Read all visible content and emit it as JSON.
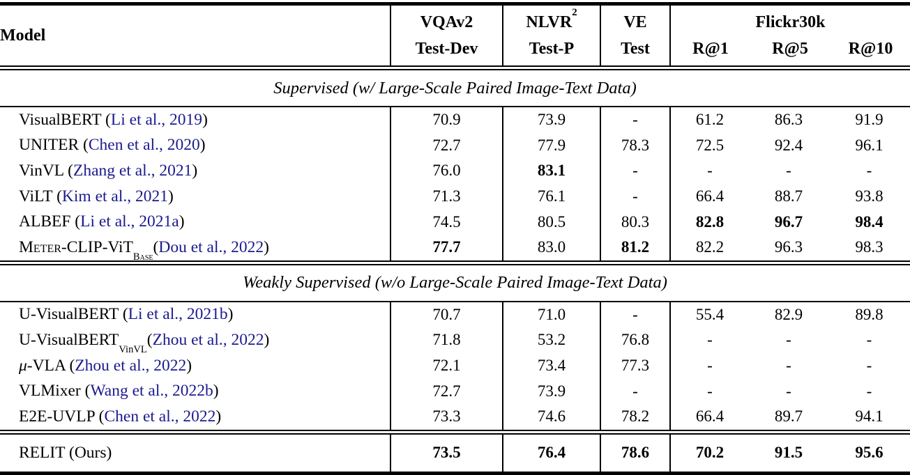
{
  "colors": {
    "citation": "#1A1A8F",
    "text": "#000000",
    "background": "#FFFFFF"
  },
  "header": {
    "model_label": "Model",
    "col_vqa": {
      "line1": "VQAv2",
      "line2": "Test-Dev"
    },
    "col_nlvr": {
      "line1_segments": [
        {
          "t": "NLVR"
        },
        {
          "t": "2",
          "sup": true
        }
      ],
      "line2": "Test-P"
    },
    "col_ve": {
      "line1": "VE",
      "line2": "Test"
    },
    "col_flickr": {
      "title": "Flickr30k",
      "sub": [
        "R@1",
        "R@5",
        "R@10"
      ]
    }
  },
  "sections": [
    {
      "title": "Supervised (w/ Large-Scale Paired Image-Text Data)",
      "rows": [
        {
          "model": [
            {
              "t": "VisualBERT ("
            },
            {
              "t": "Li et al., 2019",
              "cite": true
            },
            {
              "t": ")"
            }
          ],
          "values": [
            "70.9",
            "73.9",
            "-",
            "61.2",
            "86.3",
            "91.9"
          ]
        },
        {
          "model": [
            {
              "t": "UNITER ("
            },
            {
              "t": "Chen et al., 2020",
              "cite": true
            },
            {
              "t": ")"
            }
          ],
          "values": [
            "72.7",
            "77.9",
            "78.3",
            "72.5",
            "92.4",
            "96.1"
          ]
        },
        {
          "model": [
            {
              "t": "VinVL ("
            },
            {
              "t": "Zhang et al., 2021",
              "cite": true
            },
            {
              "t": ")"
            }
          ],
          "values": [
            "76.0",
            "83.1",
            "-",
            "-",
            "-",
            "-"
          ],
          "bold": [
            false,
            true,
            false,
            false,
            false,
            false
          ]
        },
        {
          "model": [
            {
              "t": "ViLT ("
            },
            {
              "t": "Kim et al., 2021",
              "cite": true
            },
            {
              "t": ")"
            }
          ],
          "values": [
            "71.3",
            "76.1",
            "-",
            "66.4",
            "88.7",
            "93.8"
          ]
        },
        {
          "model": [
            {
              "t": "ALBEF ("
            },
            {
              "t": "Li et al., 2021a",
              "cite": true
            },
            {
              "t": ")"
            }
          ],
          "values": [
            "74.5",
            "80.5",
            "80.3",
            "82.8",
            "96.7",
            "98.4"
          ],
          "bold": [
            false,
            false,
            false,
            true,
            true,
            true
          ]
        },
        {
          "model": [
            {
              "t": "Meter",
              "sc": true
            },
            {
              "t": "-CLIP-ViT"
            },
            {
              "t": "Base",
              "sub": true,
              "sc": true
            },
            {
              "t": " ("
            },
            {
              "t": "Dou et al., 2022",
              "cite": true
            },
            {
              "t": ")"
            }
          ],
          "values": [
            "77.7",
            "83.0",
            "81.2",
            "82.2",
            "96.3",
            "98.3"
          ],
          "bold": [
            true,
            false,
            true,
            false,
            false,
            false
          ]
        }
      ]
    },
    {
      "title": "Weakly Supervised (w/o Large-Scale Paired Image-Text Data)",
      "rows": [
        {
          "model": [
            {
              "t": "U-VisualBERT ("
            },
            {
              "t": "Li et al., 2021b",
              "cite": true
            },
            {
              "t": ")"
            }
          ],
          "values": [
            "70.7",
            "71.0",
            "-",
            "55.4",
            "82.9",
            "89.8"
          ]
        },
        {
          "model": [
            {
              "t": "U-VisualBERT"
            },
            {
              "t": "VinVL",
              "sub": true
            },
            {
              "t": " ("
            },
            {
              "t": "Zhou et al., 2022",
              "cite": true
            },
            {
              "t": ")"
            }
          ],
          "values": [
            "71.8",
            "53.2",
            "76.8",
            "-",
            "-",
            "-"
          ]
        },
        {
          "model": [
            {
              "t": "μ",
              "it": true
            },
            {
              "t": "-VLA ("
            },
            {
              "t": "Zhou et al., 2022",
              "cite": true
            },
            {
              "t": ")"
            }
          ],
          "values": [
            "72.1",
            "73.4",
            "77.3",
            "-",
            "-",
            "-"
          ]
        },
        {
          "model": [
            {
              "t": "VLMixer ("
            },
            {
              "t": "Wang et al., 2022b",
              "cite": true
            },
            {
              "t": ")"
            }
          ],
          "values": [
            "72.7",
            "73.9",
            "-",
            "-",
            "-",
            "-"
          ]
        },
        {
          "model": [
            {
              "t": "E2E-UVLP ("
            },
            {
              "t": "Chen et al., 2022",
              "cite": true
            },
            {
              "t": ")"
            }
          ],
          "values": [
            "73.3",
            "74.6",
            "78.2",
            "66.4",
            "89.7",
            "94.1"
          ]
        }
      ]
    }
  ],
  "final_row": {
    "model": [
      {
        "t": "RELIT (Ours)"
      }
    ],
    "values": [
      "73.5",
      "76.4",
      "78.6",
      "70.2",
      "91.5",
      "95.6"
    ],
    "bold": [
      true,
      true,
      true,
      true,
      true,
      true
    ]
  }
}
